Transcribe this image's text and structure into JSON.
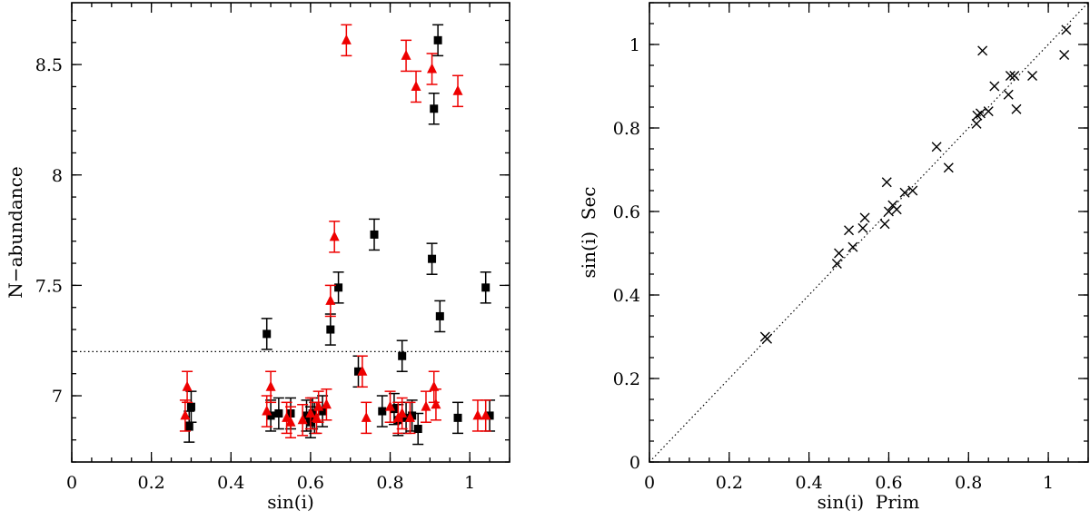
{
  "colors": {
    "black": "#000000",
    "red": "#ee0000",
    "background": "#ffffff"
  },
  "chart_data": [
    {
      "type": "scatter",
      "panel": "left",
      "xlabel": "sin(i)",
      "ylabel": "N−abundance",
      "xlim": [
        0,
        1.1
      ],
      "ylim": [
        6.7,
        8.78
      ],
      "xticks": [
        0,
        0.2,
        0.4,
        0.6,
        0.8,
        1
      ],
      "xtick_labels": [
        "0",
        "0.2",
        "0.4",
        "0.6",
        "0.8",
        "1"
      ],
      "yticks": [
        7,
        7.5,
        8,
        8.5
      ],
      "ytick_labels": [
        "7",
        "7.5",
        "8",
        "8.5"
      ],
      "hline": 7.2,
      "series": [
        {
          "name": "squares",
          "marker": "square",
          "color": "#000000",
          "error": 0.07,
          "x": [
            0.295,
            0.3,
            0.49,
            0.5,
            0.52,
            0.55,
            0.59,
            0.6,
            0.605,
            0.61,
            0.63,
            0.65,
            0.67,
            0.72,
            0.76,
            0.78,
            0.81,
            0.82,
            0.83,
            0.84,
            0.855,
            0.87,
            0.905,
            0.91,
            0.92,
            0.925,
            0.97,
            1.04,
            1.05
          ],
          "y": [
            6.86,
            6.95,
            7.28,
            6.91,
            6.92,
            6.92,
            6.91,
            6.88,
            6.92,
            6.9,
            6.93,
            7.3,
            7.49,
            7.11,
            7.73,
            6.93,
            6.94,
            6.89,
            7.18,
            6.9,
            6.91,
            6.85,
            7.62,
            8.3,
            8.61,
            7.36,
            6.9,
            7.49,
            6.91
          ]
        },
        {
          "name": "triangles",
          "marker": "triangle",
          "color": "#ee0000",
          "error": 0.07,
          "x": [
            0.285,
            0.29,
            0.49,
            0.5,
            0.54,
            0.55,
            0.58,
            0.6,
            0.615,
            0.62,
            0.64,
            0.65,
            0.66,
            0.69,
            0.73,
            0.74,
            0.8,
            0.82,
            0.83,
            0.84,
            0.85,
            0.865,
            0.89,
            0.905,
            0.91,
            0.915,
            0.97,
            1.02,
            1.04
          ],
          "y": [
            6.91,
            7.04,
            6.93,
            7.04,
            6.9,
            6.88,
            6.89,
            6.92,
            6.9,
            6.95,
            6.96,
            7.43,
            7.72,
            8.61,
            7.11,
            6.9,
            6.95,
            6.9,
            6.92,
            8.54,
            6.9,
            8.4,
            6.95,
            8.48,
            7.04,
            6.96,
            8.38,
            6.91,
            6.91
          ]
        }
      ]
    },
    {
      "type": "scatter",
      "panel": "right",
      "xlabel": "sin(i)  Prim",
      "ylabel": "sin(i)  Sec",
      "xlim": [
        0,
        1.1
      ],
      "ylim": [
        0,
        1.1
      ],
      "xticks": [
        0,
        0.2,
        0.4,
        0.6,
        0.8,
        1
      ],
      "xtick_labels": [
        "0",
        "0.2",
        "0.4",
        "0.6",
        "0.8",
        "1"
      ],
      "yticks": [
        0,
        0.2,
        0.4,
        0.6,
        0.8,
        1
      ],
      "ytick_labels": [
        "0",
        "0.2",
        "0.4",
        "0.6",
        "0.8",
        "1"
      ],
      "reference_line": "y = x",
      "series": [
        {
          "name": "crosses",
          "marker": "cross",
          "color": "#000000",
          "x": [
            0.29,
            0.295,
            0.47,
            0.475,
            0.5,
            0.51,
            0.535,
            0.54,
            0.59,
            0.595,
            0.6,
            0.61,
            0.62,
            0.64,
            0.66,
            0.72,
            0.75,
            0.82,
            0.822,
            0.83,
            0.835,
            0.85,
            0.865,
            0.9,
            0.905,
            0.915,
            0.92,
            0.96,
            1.04,
            1.045
          ],
          "y": [
            0.3,
            0.295,
            0.475,
            0.5,
            0.555,
            0.515,
            0.56,
            0.585,
            0.57,
            0.67,
            0.6,
            0.615,
            0.605,
            0.645,
            0.65,
            0.755,
            0.705,
            0.81,
            0.83,
            0.835,
            0.985,
            0.84,
            0.9,
            0.88,
            0.925,
            0.925,
            0.845,
            0.925,
            0.975,
            1.035
          ]
        }
      ]
    }
  ]
}
